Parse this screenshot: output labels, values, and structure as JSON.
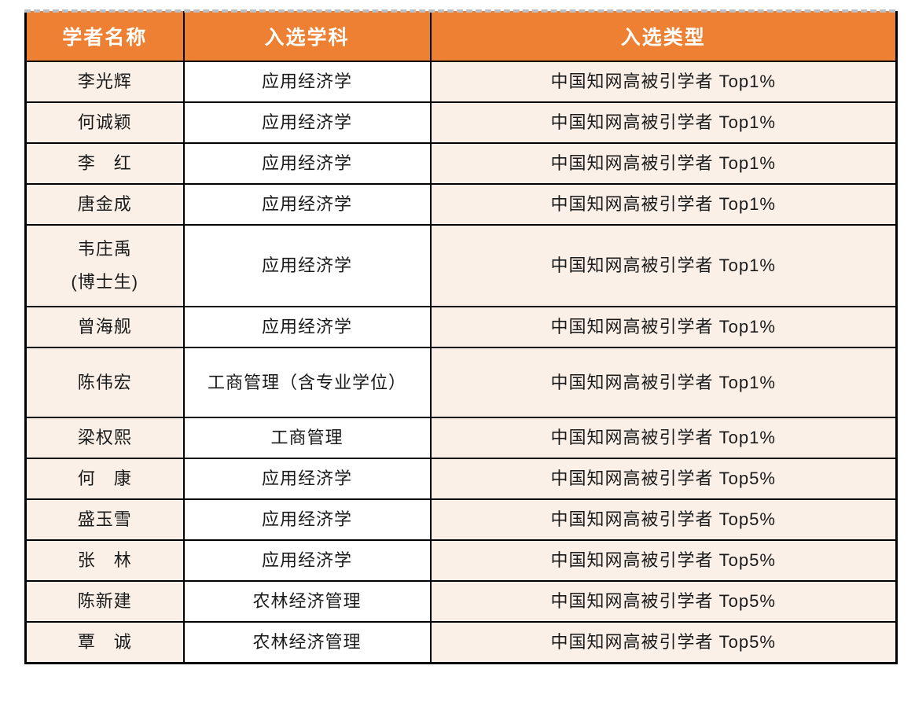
{
  "table": {
    "headers": [
      "学者名称",
      "入选学科",
      "入选类型"
    ],
    "rows": [
      {
        "name": "李光辉",
        "discipline": "应用经济学",
        "type": "中国知网高被引学者 Top1%"
      },
      {
        "name": "何诚颖",
        "discipline": "应用经济学",
        "type": "中国知网高被引学者 Top1%"
      },
      {
        "name": "李　红",
        "discipline": "应用经济学",
        "type": "中国知网高被引学者 Top1%"
      },
      {
        "name": "唐金成",
        "discipline": "应用经济学",
        "type": "中国知网高被引学者 Top1%"
      },
      {
        "name": "韦庄禹\n(博士生)",
        "discipline": "应用经济学",
        "type": "中国知网高被引学者 Top1%"
      },
      {
        "name": "曾海舰",
        "discipline": "应用经济学",
        "type": "中国知网高被引学者 Top1%"
      },
      {
        "name": "陈伟宏",
        "discipline": "工商管理（含专业学位）",
        "type": "中国知网高被引学者 Top1%"
      },
      {
        "name": "梁权熙",
        "discipline": "工商管理",
        "type": "中国知网高被引学者 Top1%"
      },
      {
        "name": "何　康",
        "discipline": "应用经济学",
        "type": "中国知网高被引学者 Top5%"
      },
      {
        "name": "盛玉雪",
        "discipline": "应用经济学",
        "type": "中国知网高被引学者 Top5%"
      },
      {
        "name": "张　林",
        "discipline": "应用经济学",
        "type": "中国知网高被引学者 Top5%"
      },
      {
        "name": "陈新建",
        "discipline": "农林经济管理",
        "type": "中国知网高被引学者 Top5%"
      },
      {
        "name": "覃　诚",
        "discipline": "农林经济管理",
        "type": "中国知网高被引学者 Top5%"
      }
    ]
  },
  "colors": {
    "header_bg": "#ED8033",
    "header_text": "#FFFFFF",
    "name_cell_bg": "#FBF0E7",
    "discipline_cell_bg": "#FFFFFF",
    "type_cell_bg": "#FBF0E7",
    "border": "#000000",
    "dashed_line": "#BCC0C4"
  }
}
